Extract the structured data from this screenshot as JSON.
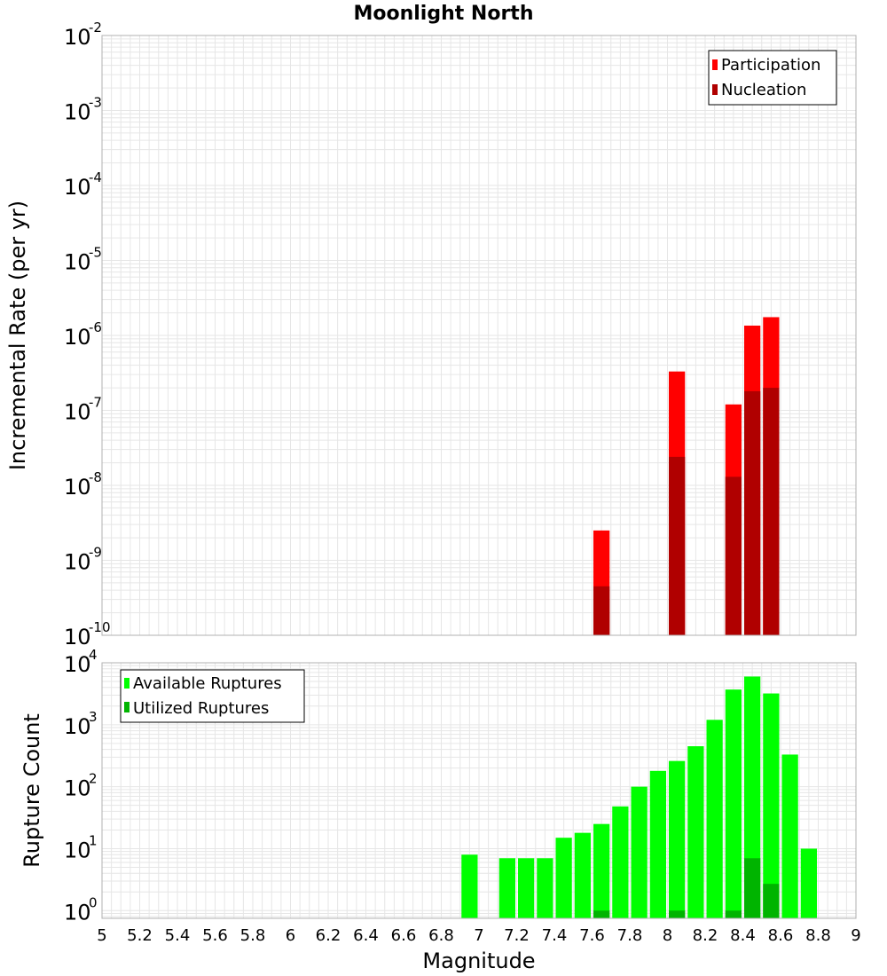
{
  "title": "Moonlight North",
  "colors": {
    "participation": "#ff0000",
    "nucleation": "#b00000",
    "available": "#00ff00",
    "utilized": "#00b400",
    "grid": "#e6e6e6",
    "frame": "#b0b0b0"
  },
  "chart_data": [
    {
      "type": "bar",
      "scale": "log",
      "ylabel": "Incremental Rate (per yr)",
      "xlabel": "Magnitude",
      "xlim": [
        5,
        9
      ],
      "ylim": [
        1e-10,
        0.01
      ],
      "y_ticks": [
        {
          "base": "10",
          "exp": "-10"
        },
        {
          "base": "10",
          "exp": "-9"
        },
        {
          "base": "10",
          "exp": "-8"
        },
        {
          "base": "10",
          "exp": "-7"
        },
        {
          "base": "10",
          "exp": "-6"
        },
        {
          "base": "10",
          "exp": "-5"
        },
        {
          "base": "10",
          "exp": "-4"
        },
        {
          "base": "10",
          "exp": "-3"
        },
        {
          "base": "10",
          "exp": "-2"
        }
      ],
      "legend": {
        "position": "top-right",
        "entries": [
          "Participation",
          "Nucleation"
        ]
      },
      "series": [
        {
          "name": "Participation",
          "x": [
            7.65,
            8.05,
            8.35,
            8.45,
            8.55
          ],
          "values": [
            2.5e-09,
            3.3e-07,
            1.2e-07,
            1.35e-06,
            1.75e-06
          ]
        },
        {
          "name": "Nucleation",
          "x": [
            7.65,
            8.05,
            8.35,
            8.45,
            8.55
          ],
          "values": [
            4.5e-10,
            2.4e-08,
            1.3e-08,
            1.8e-07,
            2e-07
          ]
        }
      ]
    },
    {
      "type": "bar",
      "scale": "log",
      "ylabel": "Rupture Count",
      "xlabel": "Magnitude",
      "xlim": [
        5,
        9
      ],
      "ylim": [
        0.75,
        10000
      ],
      "y_ticks": [
        {
          "base": "10",
          "exp": "0"
        },
        {
          "base": "10",
          "exp": "1"
        },
        {
          "base": "10",
          "exp": "2"
        },
        {
          "base": "10",
          "exp": "3"
        },
        {
          "base": "10",
          "exp": "4"
        }
      ],
      "x_ticks": [
        "5",
        "5.2",
        "5.4",
        "5.6",
        "5.8",
        "6",
        "6.2",
        "6.4",
        "6.6",
        "6.8",
        "7",
        "7.2",
        "7.4",
        "7.6",
        "7.8",
        "8",
        "8.2",
        "8.4",
        "8.6",
        "8.8",
        "9"
      ],
      "legend": {
        "position": "top-left",
        "entries": [
          "Available Ruptures",
          "Utilized Ruptures"
        ]
      },
      "series": [
        {
          "name": "Available Ruptures",
          "x": [
            6.95,
            7.15,
            7.25,
            7.35,
            7.45,
            7.55,
            7.65,
            7.75,
            7.85,
            7.95,
            8.05,
            8.15,
            8.25,
            8.35,
            8.45,
            8.55,
            8.65,
            8.75
          ],
          "values": [
            8,
            7,
            7,
            7,
            15,
            18,
            25,
            48,
            100,
            180,
            260,
            450,
            1200,
            3700,
            6000,
            3200,
            330,
            10
          ]
        },
        {
          "name": "Utilized Ruptures",
          "x": [
            7.65,
            8.05,
            8.35,
            8.45,
            8.55
          ],
          "values": [
            1,
            1,
            1,
            7,
            2.7
          ]
        }
      ]
    }
  ]
}
